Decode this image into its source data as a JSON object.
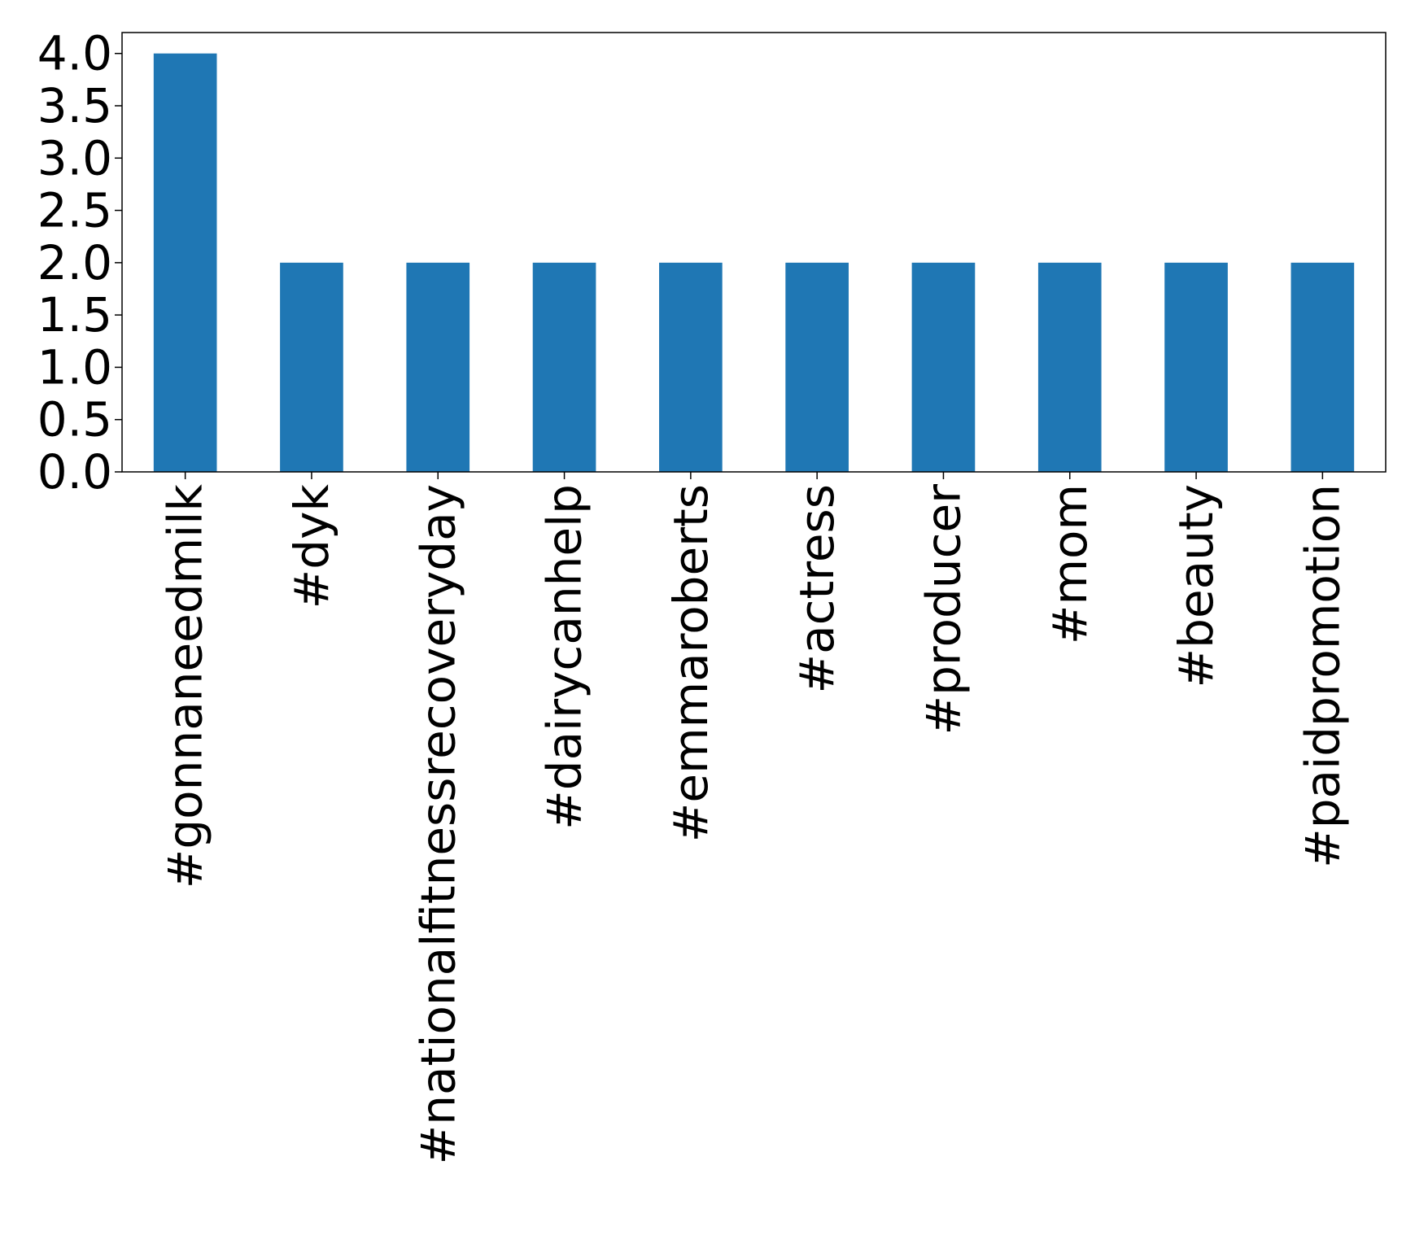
{
  "chart_data": {
    "type": "bar",
    "title": "",
    "xlabel": "",
    "ylabel": "",
    "categories": [
      "#gonnaneedmilk",
      "#dyk",
      "#nationalfitnessrecoveryday",
      "#dairycanhelp",
      "#emmaroberts",
      "#actress",
      "#producer",
      "#mom",
      "#beauty",
      "#paidpromotion"
    ],
    "values": [
      4,
      2,
      2,
      2,
      2,
      2,
      2,
      2,
      2,
      2
    ],
    "ylim": [
      0,
      4.2
    ],
    "yticks": [
      0.0,
      0.5,
      1.0,
      1.5,
      2.0,
      2.5,
      3.0,
      3.5,
      4.0
    ],
    "ytick_labels": [
      "0.0",
      "0.5",
      "1.0",
      "1.5",
      "2.0",
      "2.5",
      "3.0",
      "3.5",
      "4.0"
    ],
    "bar_color": "#1f77b4",
    "grid": false,
    "legend": "none"
  }
}
